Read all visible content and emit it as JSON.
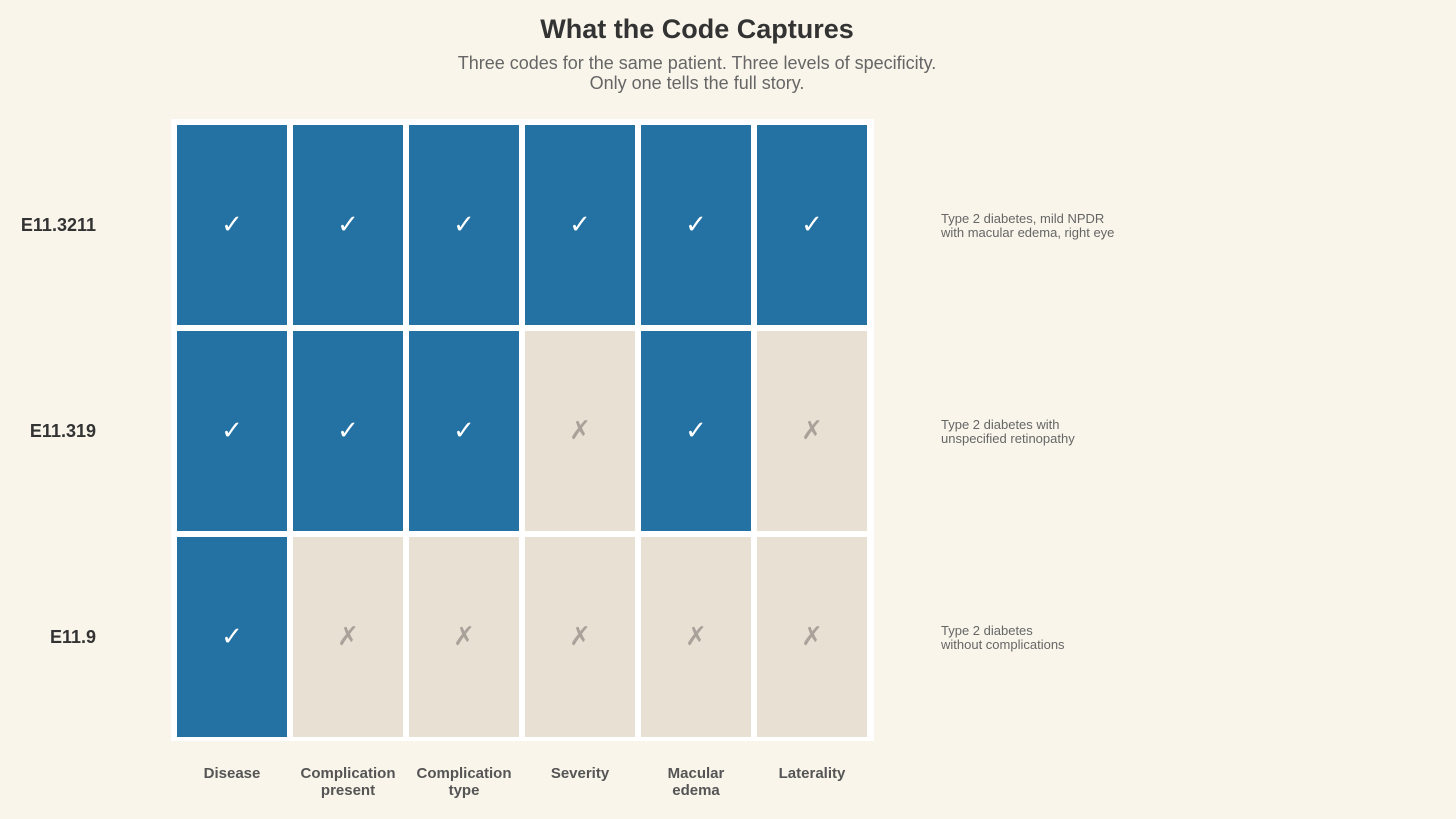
{
  "chart_data": {
    "type": "heatmap",
    "title": "What the Code Captures",
    "subtitle": [
      "Three codes for the same patient. Three levels of specificity.",
      "Only one tells the full story."
    ],
    "columns": [
      [
        "Disease"
      ],
      [
        "Complication",
        "present"
      ],
      [
        "Complication",
        "type"
      ],
      [
        "Severity"
      ],
      [
        "Macular",
        "edema"
      ],
      [
        "Laterality"
      ]
    ],
    "rows": [
      {
        "code": "E11.3211",
        "description": [
          "Type 2 diabetes, mild NPDR",
          "with macular edema, right eye"
        ],
        "values": [
          1,
          1,
          1,
          1,
          1,
          1
        ]
      },
      {
        "code": "E11.319",
        "description": [
          "Type 2 diabetes with",
          "unspecified retinopathy"
        ],
        "values": [
          1,
          1,
          1,
          0,
          1,
          0
        ]
      },
      {
        "code": "E11.9",
        "description": [
          "Type 2 diabetes",
          "without complications"
        ],
        "values": [
          1,
          0,
          0,
          0,
          0,
          0
        ]
      }
    ],
    "symbols": {
      "captured": "✓",
      "missing": "✗"
    },
    "colors": {
      "captured": "#2471a3",
      "missing": "#e8e1d3",
      "background": "#f9f5ea"
    }
  }
}
